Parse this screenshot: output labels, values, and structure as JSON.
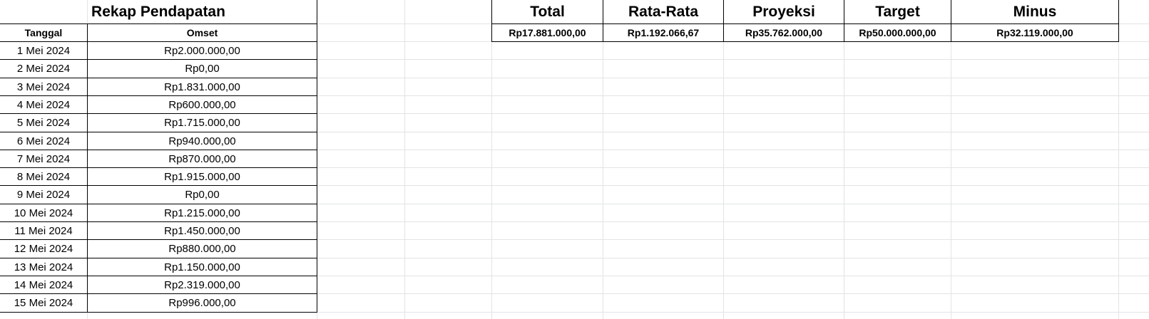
{
  "left_table": {
    "title": "Rekap Pendapatan",
    "headers": [
      "Tanggal",
      "Omset"
    ],
    "rows": [
      [
        "1 Mei 2024",
        "Rp2.000.000,00"
      ],
      [
        "2 Mei 2024",
        "Rp0,00"
      ],
      [
        "3 Mei 2024",
        "Rp1.831.000,00"
      ],
      [
        "4 Mei 2024",
        "Rp600.000,00"
      ],
      [
        "5 Mei 2024",
        "Rp1.715.000,00"
      ],
      [
        "6 Mei 2024",
        "Rp940.000,00"
      ],
      [
        "7 Mei 2024",
        "Rp870.000,00"
      ],
      [
        "8 Mei 2024",
        "Rp1.915.000,00"
      ],
      [
        "9 Mei 2024",
        "Rp0,00"
      ],
      [
        "10 Mei 2024",
        "Rp1.215.000,00"
      ],
      [
        "11 Mei 2024",
        "Rp1.450.000,00"
      ],
      [
        "12 Mei 2024",
        "Rp880.000,00"
      ],
      [
        "13 Mei 2024",
        "Rp1.150.000,00"
      ],
      [
        "14 Mei 2024",
        "Rp2.319.000,00"
      ],
      [
        "15 Mei 2024",
        "Rp996.000,00"
      ]
    ]
  },
  "summary": {
    "headers": [
      "Total",
      "Rata-Rata",
      "Proyeksi",
      "Target",
      "Minus"
    ],
    "values": [
      "Rp17.881.000,00",
      "Rp1.192.066,67",
      "Rp35.762.000,00",
      "Rp50.000.000,00",
      "Rp32.119.000,00"
    ]
  },
  "colors": {
    "gridline": "#e2e3e3",
    "border": "#000000"
  }
}
